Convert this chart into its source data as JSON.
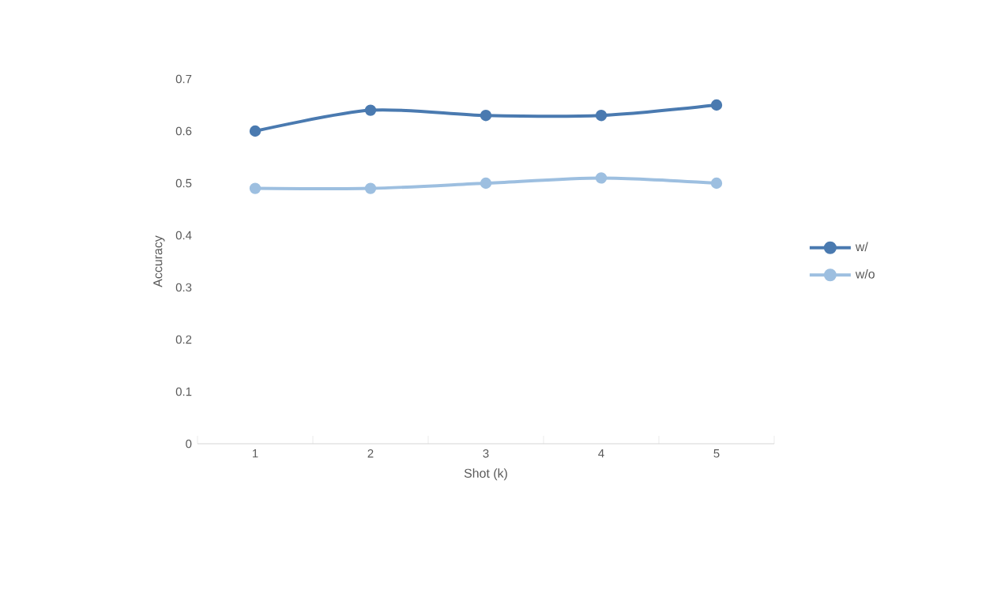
{
  "chart_data": {
    "type": "line",
    "xlabel": "Shot (k)",
    "ylabel": "Accuracy",
    "categories": [
      "1",
      "2",
      "3",
      "4",
      "5"
    ],
    "series": [
      {
        "name": "w/",
        "color": "#4a7ab0",
        "values": [
          0.6,
          0.64,
          0.63,
          0.63,
          0.65
        ]
      },
      {
        "name": "w/o",
        "color": "#9dbfe0",
        "values": [
          0.49,
          0.49,
          0.5,
          0.51,
          0.5
        ]
      }
    ],
    "ylim": [
      0,
      0.7
    ],
    "yticks": [
      0,
      0.1,
      0.2,
      0.3,
      0.4,
      0.5,
      0.6,
      0.7
    ],
    "grid": false,
    "legend": "right",
    "marker": "circle",
    "line_style": "solid"
  }
}
